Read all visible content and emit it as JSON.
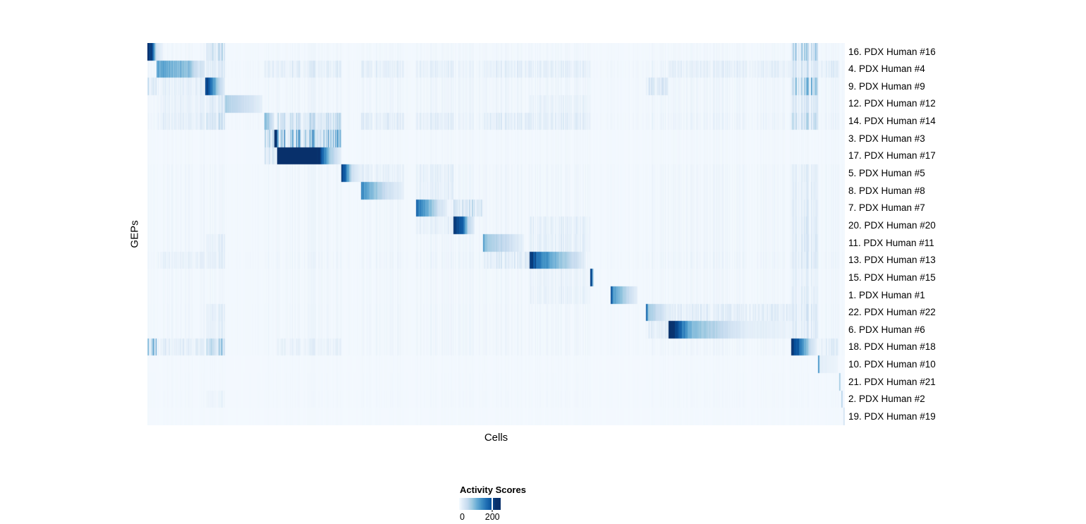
{
  "chart_data": {
    "type": "heatmap",
    "title": "",
    "xlabel": "Cells",
    "ylabel": "GEPs",
    "rows": [
      "16. PDX Human #16",
      "4. PDX Human #4",
      "9. PDX Human #9",
      "12. PDX Human #12",
      "14. PDX Human #14",
      "3. PDX Human #3",
      "17. PDX Human #17",
      "5. PDX Human #5",
      "8. PDX Human #8",
      "7. PDX Human #7",
      "20. PDX Human #20",
      "11. PDX Human #11",
      "13. PDX Human #13",
      "15. PDX Human #15",
      "1. PDX Human #1",
      "22. PDX Human #22",
      "6. PDX Human #6",
      "18. PDX Human #18",
      "10. PDX Human #10",
      "21. PDX Human #21",
      "2. PDX Human #2",
      "19. PDX Human #19"
    ],
    "colorbar": {
      "title": "Activity Scores",
      "tick_labels": [
        "0",
        "200"
      ],
      "tick_fraction": 0.8,
      "stops": [
        "#f7fbff",
        "#deebf7",
        "#c6dbef",
        "#9ecae1",
        "#6baed6",
        "#4292c6",
        "#2171b5",
        "#08519c",
        "#08306b"
      ],
      "bar_stop_positions": [
        0,
        9,
        20,
        31,
        42,
        53,
        65,
        78,
        88
      ]
    },
    "base_intensity": 0.018,
    "noise_seed": 7,
    "streak_bands": {
      "A": [
        0.0,
        0.0131
      ],
      "B": [
        0.0131,
        0.0829
      ],
      "C": [
        0.0829,
        0.1112
      ],
      "D": [
        0.1678,
        0.1861
      ],
      "E": [
        0.1861,
        0.2781
      ],
      "F": [
        0.3064,
        0.3681
      ],
      "G": [
        0.3853,
        0.4388
      ],
      "H": [
        0.4388,
        0.4813
      ],
      "I": [
        0.4813,
        0.5481
      ],
      "J": [
        0.5481,
        0.635
      ],
      "K": [
        0.7149,
        0.7472
      ],
      "L": [
        0.7472,
        0.9231
      ],
      "M": [
        0.9231,
        0.9616
      ],
      "N": [
        0.9616,
        0.9919
      ]
    },
    "row_profiles": [
      {
        "segments": [
          [
            0.0,
            0.0066,
            0.97,
            0.88
          ],
          [
            0.0066,
            0.0131,
            0.88,
            0.15
          ],
          [
            0.0131,
            0.0222,
            0.15,
            0.05
          ]
        ],
        "streaks": {
          "C": 0.15,
          "M": 0.22
        },
        "noise": 0.4
      },
      {
        "segments": [
          [
            0.0131,
            0.0607,
            0.48,
            0.3
          ],
          [
            0.0607,
            0.0728,
            0.3,
            0.1
          ],
          [
            0.0728,
            0.0829,
            0.1,
            0.04
          ]
        ],
        "streaks": {
          "B": 0.05,
          "C": 0.07,
          "D": 0.05,
          "E": 0.05,
          "F": 0.05,
          "G": 0.04,
          "I": 0.04,
          "J": 0.05,
          "L": 0.04,
          "M": 0.1,
          "N": 0.05
        },
        "noise": 1.0
      },
      {
        "segments": [
          [
            0.0829,
            0.089,
            0.92,
            0.8
          ],
          [
            0.089,
            0.1021,
            0.8,
            0.25
          ],
          [
            0.1021,
            0.1112,
            0.25,
            0.06
          ]
        ],
        "streaks": {
          "A": 0.12,
          "B": 0.05,
          "K": 0.1,
          "M": 0.25
        },
        "noise": 0.7
      },
      {
        "segments": [
          [
            0.1112,
            0.1416,
            0.3,
            0.18
          ],
          [
            0.1416,
            0.1648,
            0.18,
            0.06
          ]
        ],
        "streaks": {
          "B": 0.04,
          "C": 0.08,
          "J": 0.04,
          "M": 0.1
        },
        "noise": 0.7
      },
      {
        "segments": [
          [
            0.1678,
            0.1729,
            0.45,
            0.3
          ],
          [
            0.1729,
            0.182,
            0.3,
            0.08
          ]
        ],
        "streaks": {
          "B": 0.05,
          "C": 0.12,
          "E": 0.15,
          "F": 0.06,
          "G": 0.05,
          "I": 0.05,
          "J": 0.06,
          "M": 0.15
        },
        "noise": 1.0
      },
      {
        "segments": [
          [
            0.182,
            0.1856,
            1.0,
            0.9
          ],
          [
            0.1856,
            0.1871,
            0.45,
            0.3
          ]
        ],
        "streaks": {
          "D": 0.2,
          "E": 0.32
        },
        "noise": 0.3
      },
      {
        "segments": [
          [
            0.1861,
            0.2467,
            1.0,
            0.99
          ],
          [
            0.2467,
            0.2609,
            0.99,
            0.35
          ],
          [
            0.2609,
            0.2781,
            0.35,
            0.05
          ]
        ],
        "streaks": {
          "D": 0.12
        },
        "noise": 0.3
      },
      {
        "segments": [
          [
            0.2781,
            0.2841,
            0.95,
            0.75
          ],
          [
            0.2841,
            0.2933,
            0.75,
            0.18
          ],
          [
            0.2933,
            0.3064,
            0.18,
            0.05
          ]
        ],
        "streaks": {
          "F": 0.05,
          "G": 0.06,
          "M": 0.06
        },
        "noise": 0.6
      },
      {
        "segments": [
          [
            0.3064,
            0.3125,
            0.62,
            0.52
          ],
          [
            0.3125,
            0.3438,
            0.52,
            0.16
          ],
          [
            0.3438,
            0.3681,
            0.16,
            0.05
          ]
        ],
        "streaks": {
          "G": 0.05,
          "M": 0.06
        },
        "noise": 0.6
      },
      {
        "segments": [
          [
            0.3853,
            0.3923,
            0.72,
            0.62
          ],
          [
            0.3923,
            0.4176,
            0.62,
            0.16
          ],
          [
            0.4176,
            0.4298,
            0.16,
            0.05
          ]
        ],
        "streaks": {
          "H": 0.12,
          "M": 0.06
        },
        "noise": 0.6
      },
      {
        "segments": [
          [
            0.4388,
            0.452,
            0.95,
            0.78
          ],
          [
            0.452,
            0.4601,
            0.78,
            0.22
          ],
          [
            0.4601,
            0.4692,
            0.22,
            0.06
          ]
        ],
        "streaks": {
          "G": 0.05,
          "J": 0.06,
          "M": 0.08
        },
        "noise": 0.6
      },
      {
        "segments": [
          [
            0.4813,
            0.4843,
            0.55,
            0.38
          ],
          [
            0.4843,
            0.5137,
            0.34,
            0.2
          ],
          [
            0.5137,
            0.54,
            0.2,
            0.04
          ]
        ],
        "streaks": {
          "C": 0.05,
          "J": 0.06,
          "M": 0.08
        },
        "noise": 0.6
      },
      {
        "segments": [
          [
            0.5481,
            0.5572,
            0.95,
            0.78
          ],
          [
            0.5572,
            0.5845,
            0.72,
            0.42
          ],
          [
            0.5845,
            0.6279,
            0.42,
            0.05
          ]
        ],
        "streaks": {
          "B": 0.04,
          "C": 0.05,
          "I": 0.07,
          "M": 0.08
        },
        "noise": 0.8
      },
      {
        "segments": [
          [
            0.635,
            0.638,
            0.92,
            0.85
          ],
          [
            0.638,
            0.6401,
            0.5,
            0.18
          ]
        ],
        "streaks": {
          "J": 0.04,
          "M": 0.05
        },
        "noise": 0.5
      },
      {
        "segments": [
          [
            0.6643,
            0.6674,
            0.85,
            0.72
          ],
          [
            0.6674,
            0.6866,
            0.56,
            0.26
          ],
          [
            0.6866,
            0.7028,
            0.26,
            0.06
          ]
        ],
        "streaks": {
          "J": 0.05,
          "M": 0.06
        },
        "noise": 0.5
      },
      {
        "segments": [
          [
            0.7149,
            0.7179,
            0.8,
            0.55
          ],
          [
            0.7179,
            0.7371,
            0.32,
            0.16
          ],
          [
            0.7371,
            0.7482,
            0.16,
            0.05
          ]
        ],
        "streaks": {
          "C": 0.05,
          "L": 0.07,
          "M": 0.08
        },
        "noise": 0.6
      },
      {
        "segments": [
          [
            0.7472,
            0.7563,
            1.0,
            0.92
          ],
          [
            0.7563,
            0.7806,
            0.92,
            0.4
          ],
          [
            0.7806,
            0.8544,
            0.4,
            0.08
          ],
          [
            0.8544,
            0.9221,
            0.08,
            0.03
          ]
        ],
        "streaks": {
          "C": 0.05,
          "K": 0.06,
          "M": 0.07
        },
        "noise": 0.6
      },
      {
        "segments": [
          [
            0.9231,
            0.9322,
            0.95,
            0.82
          ],
          [
            0.9322,
            0.9504,
            0.82,
            0.2
          ],
          [
            0.9504,
            0.9605,
            0.2,
            0.05
          ]
        ],
        "streaks": {
          "A": 0.35,
          "B": 0.06,
          "C": 0.22,
          "E": 0.04,
          "N": 0.06
        },
        "noise": 0.6
      },
      {
        "segments": [
          [
            0.9616,
            0.9636,
            0.6,
            0.5
          ],
          [
            0.9636,
            0.9899,
            0.08,
            0.03
          ]
        ],
        "streaks": {},
        "noise": 0.15
      },
      {
        "segments": [
          [
            0.9919,
            0.9939,
            0.35,
            0.25
          ]
        ],
        "streaks": {},
        "noise": 0.2
      },
      {
        "segments": [
          [
            0.9949,
            0.997,
            0.3,
            0.2
          ]
        ],
        "streaks": {
          "C": 0.03
        },
        "noise": 0.25
      },
      {
        "segments": [
          [
            0.998,
            1.0,
            0.18,
            0.1
          ]
        ],
        "streaks": {},
        "noise": 0.1
      }
    ]
  }
}
